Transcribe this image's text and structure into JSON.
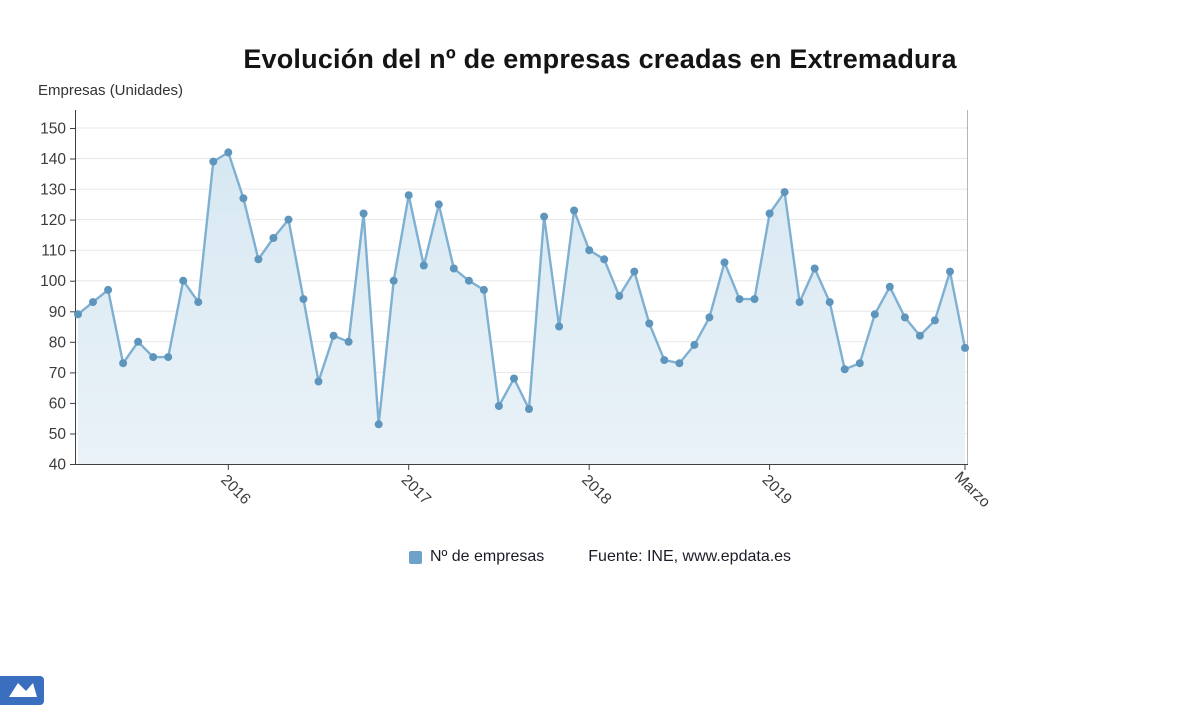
{
  "chart_data": {
    "type": "line",
    "title": "Evolución del nº de empresas creadas en Extremadura",
    "unit_label": "Empresas (Unidades)",
    "source": "Fuente: INE, www.epdata.es",
    "legend_position": "bottom",
    "grid": true,
    "ylim": [
      40,
      150
    ],
    "y_ticks": [
      40,
      50,
      60,
      70,
      80,
      90,
      100,
      110,
      120,
      130,
      140,
      150
    ],
    "x_ticks": [
      {
        "label": "2016",
        "index": 10
      },
      {
        "label": "2017",
        "index": 22
      },
      {
        "label": "2018",
        "index": 34
      },
      {
        "label": "2019",
        "index": 46
      },
      {
        "label": "Marzo",
        "index": 59
      }
    ],
    "series": [
      {
        "name": "Nº de empresas",
        "values": [
          89,
          93,
          97,
          73,
          80,
          75,
          75,
          100,
          93,
          139,
          142,
          127,
          107,
          114,
          120,
          94,
          67,
          82,
          80,
          122,
          53,
          100,
          128,
          105,
          125,
          104,
          100,
          97,
          59,
          68,
          58,
          121,
          85,
          123,
          110,
          107,
          95,
          103,
          86,
          74,
          73,
          79,
          88,
          106,
          94,
          94,
          122,
          129,
          93,
          104,
          93,
          71,
          73,
          89,
          98,
          88,
          82,
          87,
          103,
          78
        ]
      }
    ],
    "colors": {
      "line": "#7fb0d2",
      "point": "#5e95bd",
      "fill_top": "#d7e8f2",
      "fill_bottom": "#eaf2f8",
      "axis": "#3f3f3f",
      "grid": "#e7e7e7",
      "right_border": "#b5b5b5",
      "tick_text": "#3c3c3c",
      "legend_marker": "#6ea3c9",
      "logo": "#3a6fc0"
    }
  }
}
